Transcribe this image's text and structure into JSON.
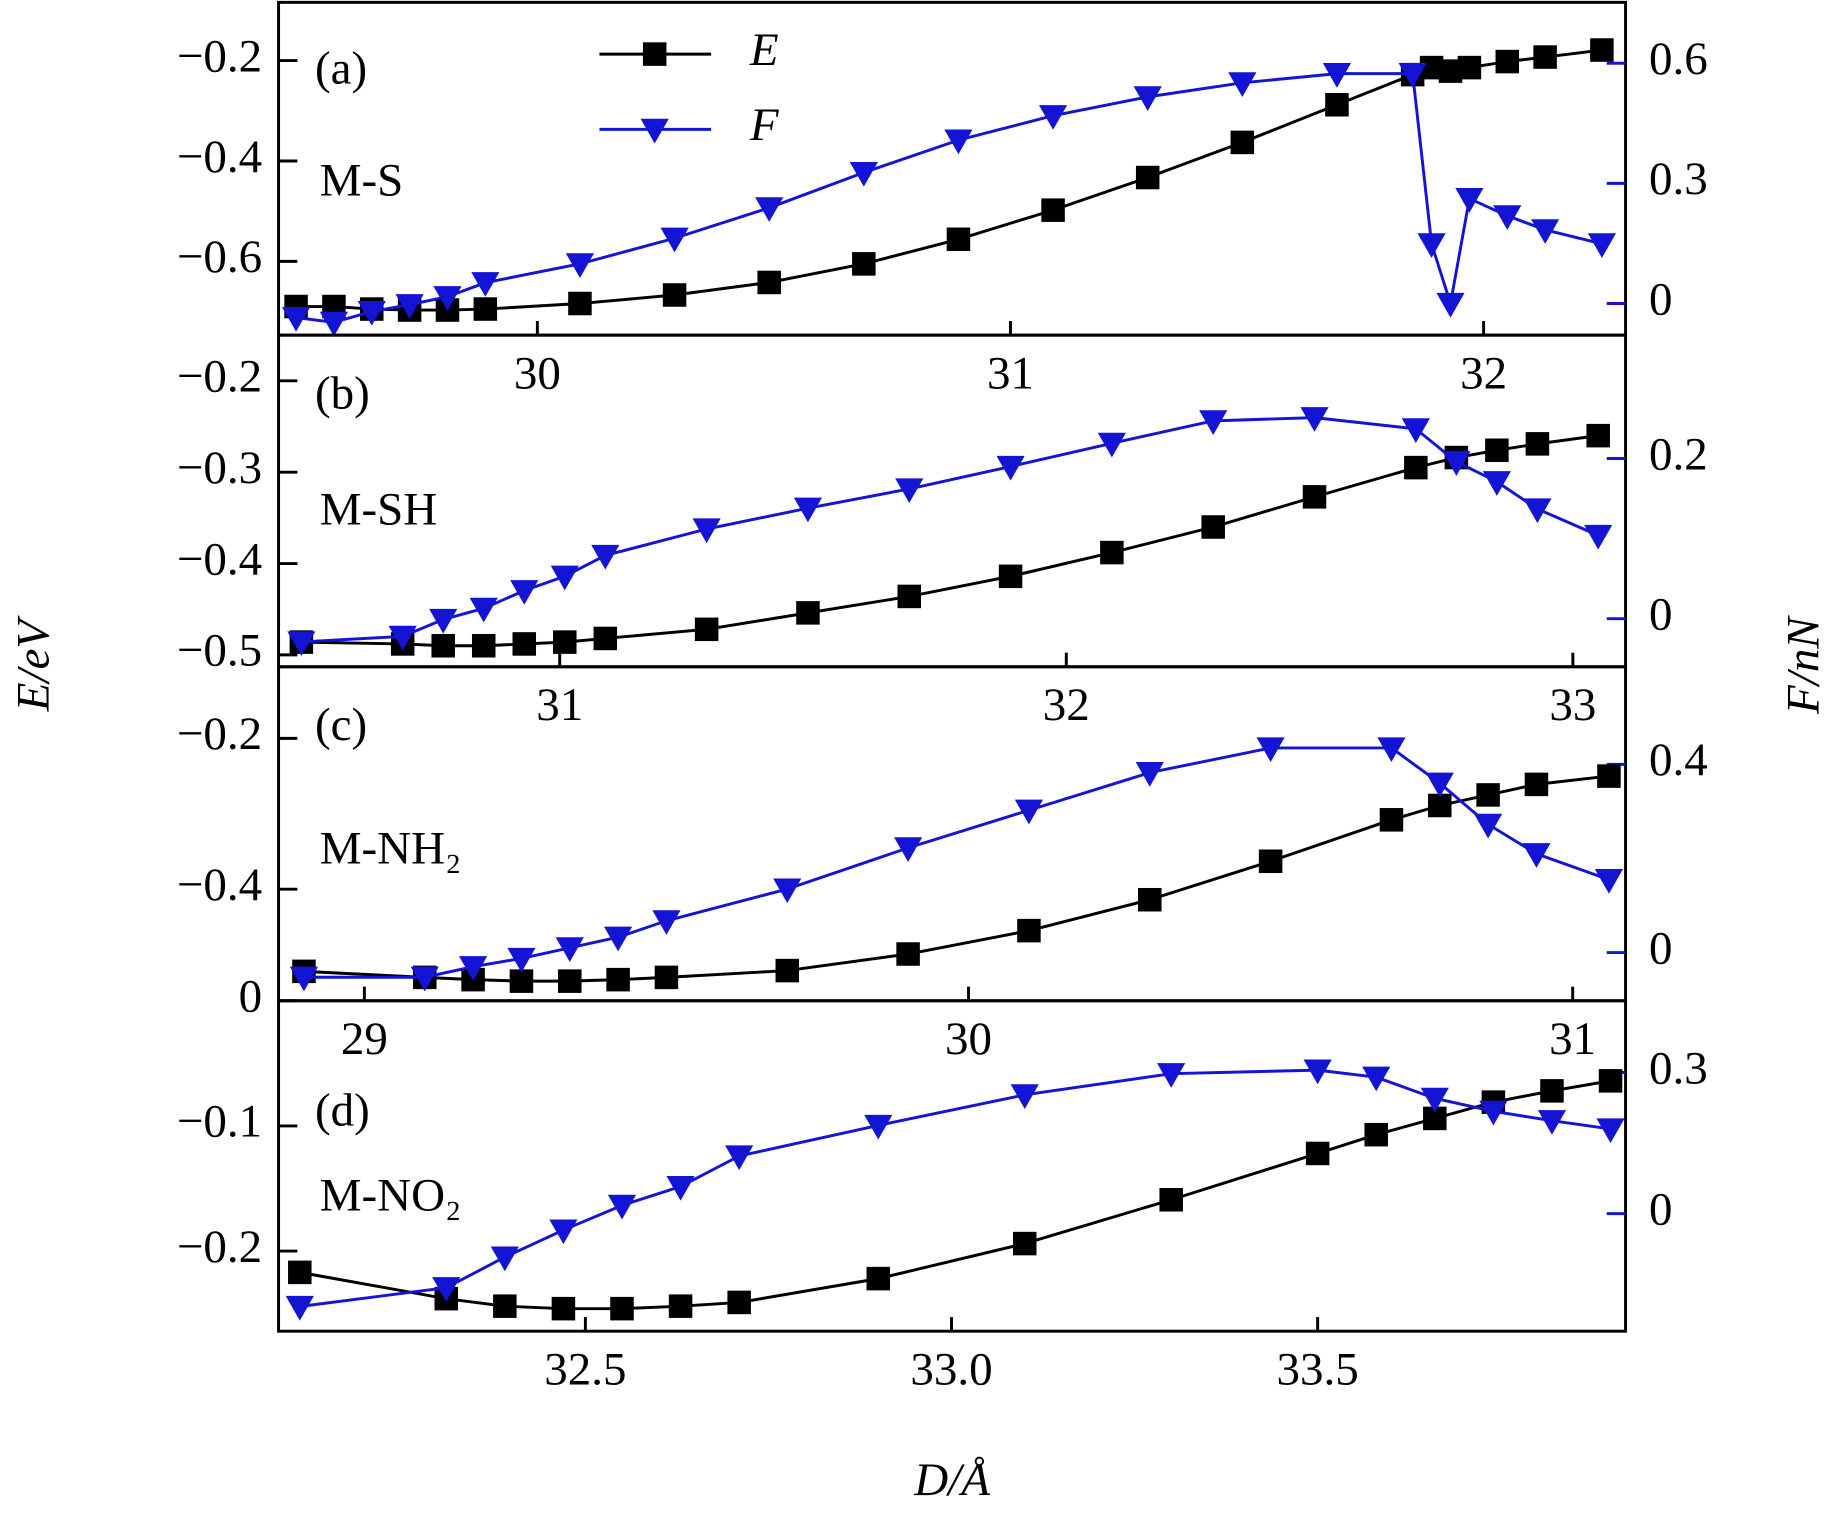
{
  "figure": {
    "xlabel": "D/Å",
    "ylabel": "E/eV",
    "y2label": "F/nN"
  },
  "chart_data": [
    {
      "type": "line",
      "label": "(a)",
      "annotation": "M-S",
      "legend": true,
      "x": [
        29.49,
        29.57,
        29.65,
        29.73,
        29.81,
        29.89,
        30.09,
        30.29,
        30.49,
        30.69,
        30.89,
        31.09,
        31.29,
        31.49,
        31.69,
        31.85,
        31.89,
        31.93,
        31.97,
        32.05,
        32.13,
        32.25
      ],
      "series": [
        {
          "name": "E",
          "color": "#000000",
          "marker": "square",
          "values": [
            -0.69,
            -0.69,
            -0.695,
            -0.697,
            -0.697,
            -0.695,
            -0.684,
            -0.667,
            -0.642,
            -0.605,
            -0.556,
            -0.498,
            -0.433,
            -0.363,
            -0.288,
            -0.228,
            -0.214,
            -0.221,
            -0.214,
            -0.202,
            -0.193,
            -0.179
          ]
        },
        {
          "name": "F",
          "color": "#1414d4",
          "marker": "triangle-down",
          "axis": "y2",
          "values": [
            -0.035,
            -0.047,
            -0.02,
            -0.003,
            0.017,
            0.052,
            0.099,
            0.163,
            0.239,
            0.327,
            0.408,
            0.469,
            0.516,
            0.551,
            0.574,
            0.574,
            0.149,
            0.0,
            0.262,
            0.219,
            0.184,
            0.149
          ]
        }
      ],
      "xlim": [
        29.453,
        32.3
      ],
      "xticks": [
        30,
        31,
        32
      ],
      "ylim": [
        -0.747,
        -0.084
      ],
      "yticks": [
        {
          "value": -0.2,
          "label": "−0.2"
        },
        {
          "value": -0.4,
          "label": "−0.4"
        },
        {
          "value": -0.6,
          "label": "−0.6"
        }
      ],
      "y2lim": [
        -0.079,
        0.752
      ],
      "y2ticks": [
        0.6,
        0.3,
        0
      ]
    },
    {
      "type": "line",
      "label": "(b)",
      "annotation": "M-SH",
      "legend": false,
      "x": [
        30.49,
        30.69,
        30.77,
        30.85,
        30.93,
        31.01,
        31.09,
        31.29,
        31.49,
        31.69,
        31.89,
        32.09,
        32.29,
        32.49,
        32.69,
        32.77,
        32.85,
        32.93,
        33.05
      ],
      "series": [
        {
          "color": "#000000",
          "marker": "square",
          "values": [
            -0.486,
            -0.488,
            -0.49,
            -0.49,
            -0.488,
            -0.486,
            -0.482,
            -0.472,
            -0.454,
            -0.436,
            -0.414,
            -0.388,
            -0.36,
            -0.327,
            -0.295,
            -0.284,
            -0.276,
            -0.269,
            -0.26
          ]
        },
        {
          "color": "#1414d4",
          "marker": "triangle-down",
          "axis": "y2",
          "values": [
            -0.029,
            -0.022,
            -0.001,
            0.013,
            0.035,
            0.053,
            0.079,
            0.112,
            0.138,
            0.162,
            0.19,
            0.219,
            0.247,
            0.251,
            0.237,
            0.196,
            0.171,
            0.137,
            0.104
          ]
        }
      ],
      "xlim": [
        30.445,
        33.104
      ],
      "xticks": [
        31,
        32,
        33
      ],
      "ylim": [
        -0.513,
        -0.15
      ],
      "yticks": [
        {
          "value": -0.2,
          "label": "−0.2"
        },
        {
          "value": -0.3,
          "label": "−0.3"
        },
        {
          "value": -0.4,
          "label": "−0.4"
        },
        {
          "value": -0.5,
          "label": "−0.5"
        }
      ],
      "y2lim": [
        -0.06,
        0.354
      ],
      "y2ticks": [
        0.2,
        0
      ]
    },
    {
      "type": "line",
      "label": "(c)",
      "annotation": "M-NH₂",
      "legend": false,
      "x": [
        28.9,
        29.1,
        29.18,
        29.26,
        29.34,
        29.42,
        29.5,
        29.7,
        29.9,
        30.1,
        30.3,
        30.5,
        30.7,
        30.78,
        30.86,
        30.94,
        31.06
      ],
      "series": [
        {
          "color": "#000000",
          "marker": "square",
          "values": [
            -0.509,
            -0.517,
            -0.52,
            -0.522,
            -0.522,
            -0.52,
            -0.517,
            -0.508,
            -0.486,
            -0.455,
            -0.414,
            -0.363,
            -0.308,
            -0.289,
            -0.275,
            -0.261,
            -0.25
          ]
        },
        {
          "color": "#1414d4",
          "marker": "triangle-down",
          "axis": "y2",
          "values": [
            -0.0525,
            -0.0525,
            -0.03,
            -0.0125,
            0.01,
            0.0325,
            0.0675,
            0.135,
            0.2225,
            0.3025,
            0.3825,
            0.435,
            0.435,
            0.36,
            0.2725,
            0.21,
            0.155
          ]
        }
      ],
      "xlim": [
        28.858,
        31.0875
      ],
      "xticks": [
        29,
        30,
        31
      ],
      "ylim": [
        -0.548,
        -0.105
      ],
      "yticks": [
        {
          "value": -0.2,
          "label": "−0.2"
        },
        {
          "value": -0.4,
          "label": "−0.4"
        }
      ],
      "y2lim": [
        -0.1025,
        0.6075
      ],
      "y2ticks": [
        0.4,
        0
      ]
    },
    {
      "type": "line",
      "label": "(d)",
      "annotation": "M-NO₂",
      "legend": false,
      "x": [
        32.11,
        32.31,
        32.39,
        32.47,
        32.55,
        32.63,
        32.71,
        32.9,
        33.1,
        33.3,
        33.5,
        33.58,
        33.66,
        33.74,
        33.82,
        33.9
      ],
      "series": [
        {
          "color": "#000000",
          "marker": "square",
          "values": [
            -0.217,
            -0.238,
            -0.244,
            -0.246,
            -0.246,
            -0.244,
            -0.241,
            -0.222,
            -0.194,
            -0.159,
            -0.122,
            -0.107,
            -0.094,
            -0.081,
            -0.072,
            -0.064
          ]
        },
        {
          "color": "#1414d4",
          "marker": "triangle-down",
          "axis": "y2",
          "values": [
            -0.1975,
            -0.1575,
            -0.0925,
            -0.035,
            0.0175,
            0.0575,
            0.1225,
            0.1875,
            0.2525,
            0.2975,
            0.305,
            0.29,
            0.245,
            0.2175,
            0.1975,
            0.18
          ]
        }
      ],
      "xlim": [
        32.081,
        33.9205
      ],
      "xticks": [
        32.5,
        {
          "value": 33,
          "label": "33.0"
        },
        33.5
      ],
      "ylim": [
        -0.264,
        0
      ],
      "yticks": [
        0,
        {
          "value": -0.1,
          "label": "−0.1"
        },
        {
          "value": -0.2,
          "label": "−0.2"
        }
      ],
      "y2lim": [
        -0.25,
        0.4525
      ],
      "y2ticks": [
        0.3,
        0
      ]
    }
  ]
}
